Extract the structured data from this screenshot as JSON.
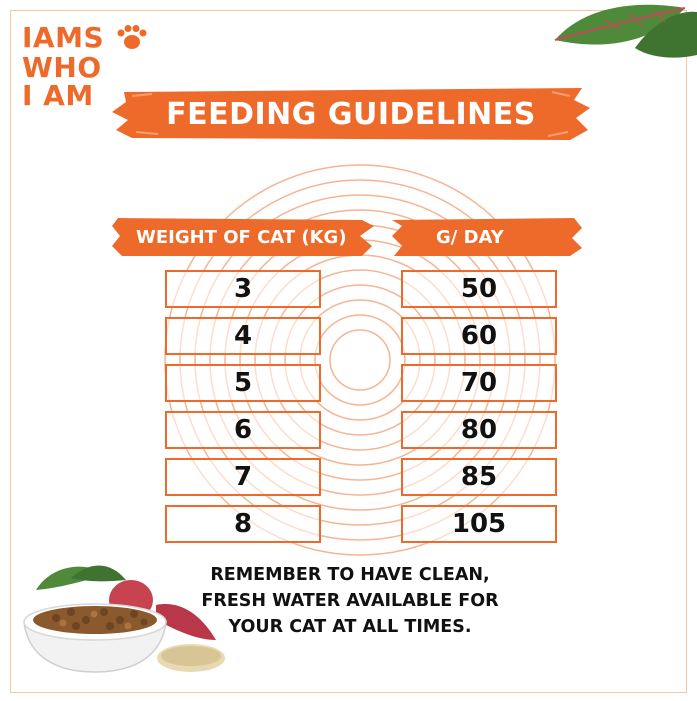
{
  "brand": {
    "logo_lines": [
      "IAMS",
      "WHO",
      "I AM"
    ],
    "accent": "#ee6a2a"
  },
  "banner": {
    "title": "FEEDING GUIDELINES"
  },
  "table": {
    "headers": [
      "WEIGHT OF CAT (KG)",
      "G/ DAY"
    ],
    "rows": [
      [
        "3",
        "50"
      ],
      [
        "4",
        "60"
      ],
      [
        "5",
        "70"
      ],
      [
        "6",
        "80"
      ],
      [
        "7",
        "85"
      ],
      [
        "8",
        "105"
      ]
    ]
  },
  "note": {
    "lines": [
      "REMEMBER TO HAVE CLEAN,",
      "FRESH WATER AVAILABLE FOR",
      "YOUR CAT AT ALL TIMES."
    ]
  },
  "icons": [
    "paw-icon",
    "leaf-illustration",
    "food-bowl-illustration"
  ]
}
